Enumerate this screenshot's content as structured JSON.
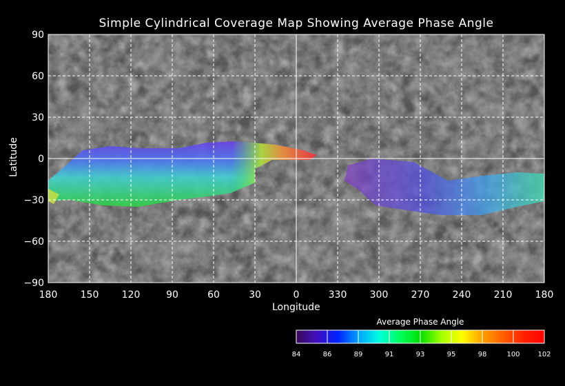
{
  "chart_data": {
    "type": "heatmap",
    "title": "Simple Cylindrical Coverage Map Showing Average Phase Angle",
    "xlabel": "Longitude",
    "ylabel": "Latitude",
    "x_ticks": [
      "180",
      "150",
      "120",
      "90",
      "60",
      "30",
      "0",
      "330",
      "300",
      "270",
      "240",
      "210",
      "180"
    ],
    "y_ticks": [
      "90",
      "60",
      "30",
      "0",
      "−30",
      "−60",
      "−90"
    ],
    "y_tick_values": [
      90,
      60,
      30,
      0,
      -30,
      -60,
      -90
    ],
    "xlim_note": "longitude decreasing left to right, 180 to 180",
    "grid": true,
    "colorbar": {
      "title": "Average Phase Angle",
      "ticks": [
        "84",
        "86",
        "89",
        "91",
        "93",
        "95",
        "98",
        "100",
        "102"
      ],
      "range": [
        84,
        102
      ],
      "colors": [
        "#3a0a5a",
        "#4010c0",
        "#0020ff",
        "#00a0ff",
        "#00ffe0",
        "#00ff60",
        "#00e000",
        "#a0ff00",
        "#ffff00",
        "#ffa000",
        "#ff6000",
        "#ff2000",
        "#ff0000"
      ]
    },
    "coverage_regions": [
      {
        "name": "region-west",
        "phase_range": [
          85,
          101
        ],
        "outline_lonlat": [
          [
            180,
            -16
          ],
          [
            170,
            -7.5
          ],
          [
            155,
            6
          ],
          [
            135,
            9
          ],
          [
            115,
            7.5
          ],
          [
            85,
            7.5
          ],
          [
            65,
            11.5
          ],
          [
            45,
            12.5
          ],
          [
            30,
            11.5
          ],
          [
            15,
            10
          ],
          [
            -5,
            6
          ],
          [
            -15,
            2.5
          ],
          [
            -10,
            -1
          ],
          [
            17.5,
            -1
          ],
          [
            30,
            -7.5
          ],
          [
            30,
            -17.5
          ],
          [
            47.5,
            -25
          ],
          [
            65,
            -27.5
          ],
          [
            85,
            -30
          ],
          [
            115,
            -35
          ],
          [
            140,
            -34
          ],
          [
            165,
            -30
          ],
          [
            180,
            -31
          ]
        ]
      },
      {
        "name": "region-east",
        "phase_range": [
          85,
          93
        ],
        "outline_lonlat": [
          [
            -37.5,
            -5
          ],
          [
            -55,
            0
          ],
          [
            -85,
            -2.5
          ],
          [
            -110,
            -16
          ],
          [
            -135,
            -12.5
          ],
          [
            -160,
            -10
          ],
          [
            -180,
            -11
          ],
          [
            -180,
            -31
          ],
          [
            -160,
            -35
          ],
          [
            -135,
            -41
          ],
          [
            -105,
            -41
          ],
          [
            -80,
            -37.5
          ],
          [
            -57.5,
            -34
          ],
          [
            -45,
            -22.5
          ],
          [
            -35,
            -16
          ]
        ]
      }
    ]
  }
}
